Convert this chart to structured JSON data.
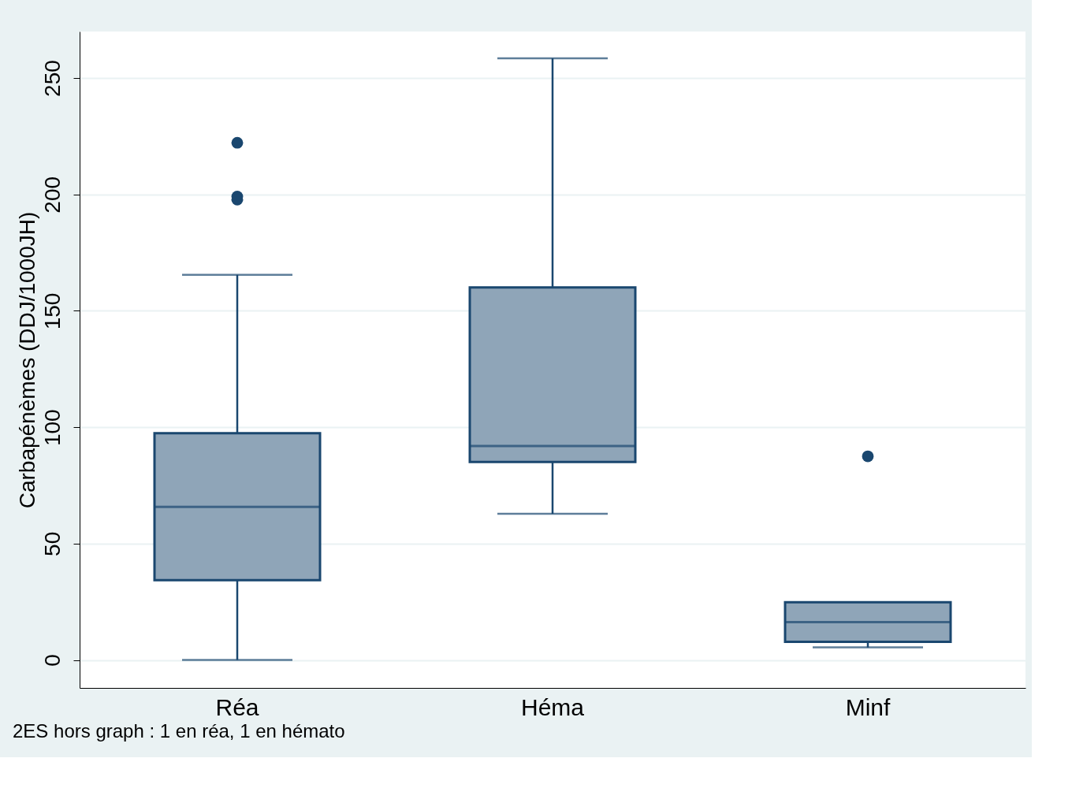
{
  "chart_data": {
    "type": "box",
    "ylabel": "Carbapénèmes (DDJ/1000JH)",
    "categories": [
      "Réa",
      "Héma",
      "Minf"
    ],
    "boxes": [
      {
        "low": 0,
        "q1": 34.3,
        "median": 65.8,
        "q3": 97.4,
        "high": 165.5,
        "outliers": [
          222.2,
          199.1,
          197.8
        ]
      },
      {
        "low": 62.8,
        "q1": 85.1,
        "median": 91.9,
        "q3": 160.1,
        "high": 258.5
      },
      {
        "low": 5.4,
        "q1": 7.8,
        "median": 16.3,
        "q3": 24.8,
        "high": 24.8,
        "outliers": [
          87.5
        ]
      }
    ],
    "color": "#8fa5b8",
    "ylim": [
      -12,
      270
    ],
    "yticks": [
      0,
      50,
      100,
      150,
      200,
      250
    ],
    "grid": "y",
    "marker": "circle",
    "annotations": [
      "2ES hors graph : 1 en réa, 1 en hémato"
    ]
  }
}
